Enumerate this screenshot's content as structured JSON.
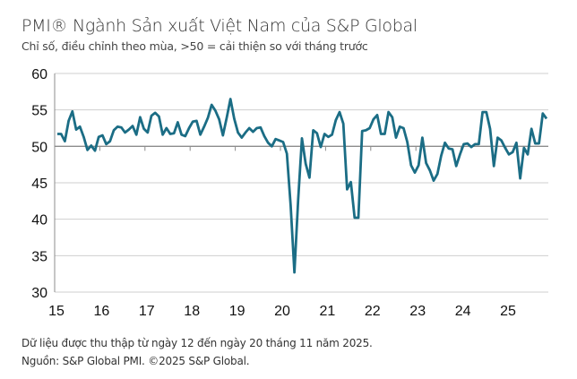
{
  "chart_data": {
    "type": "line",
    "title": "PMI® Ngành Sản xuất Việt Nam của S&P Global",
    "subtitle": "Chỉ số, điều chỉnh theo mùa, >50 = cải thiện so với tháng trước",
    "xlabel": "",
    "ylabel": "",
    "ylim": [
      30,
      60
    ],
    "yticks": [
      "30",
      "35",
      "40",
      "45",
      "50",
      "55",
      "60"
    ],
    "xticks": [
      "15",
      "16",
      "17",
      "18",
      "19",
      "20",
      "21",
      "22",
      "23",
      "24",
      "25"
    ],
    "x_start": "2015-01",
    "x_end": "2025-11",
    "x_frequency": "monthly",
    "grid": true,
    "reference_line": 50,
    "line_color": "#1b6d85",
    "values": [
      51.7,
      51.7,
      50.7,
      53.5,
      54.8,
      52.3,
      52.7,
      51.3,
      49.5,
      50.1,
      49.4,
      51.3,
      51.5,
      50.3,
      50.7,
      52.2,
      52.7,
      52.6,
      51.9,
      52.3,
      52.8,
      51.6,
      54.0,
      52.4,
      51.9,
      54.2,
      54.6,
      54.1,
      51.6,
      52.5,
      51.7,
      51.8,
      53.3,
      51.6,
      51.4,
      52.5,
      53.4,
      53.5,
      51.6,
      52.7,
      53.9,
      55.7,
      54.9,
      53.7,
      51.5,
      53.9,
      56.5,
      53.8,
      51.9,
      51.2,
      51.9,
      52.5,
      52.0,
      52.5,
      52.6,
      51.4,
      50.5,
      50.0,
      51.0,
      50.8,
      50.6,
      49.0,
      41.9,
      32.7,
      42.7,
      51.1,
      47.6,
      45.7,
      52.2,
      51.8,
      49.9,
      51.7,
      51.3,
      51.6,
      53.6,
      54.7,
      53.1,
      44.1,
      45.1,
      40.2,
      40.2,
      52.1,
      52.2,
      52.5,
      53.7,
      54.3,
      51.7,
      51.7,
      54.7,
      54.0,
      51.2,
      52.7,
      52.5,
      50.6,
      47.4,
      46.4,
      47.4,
      51.2,
      47.7,
      46.7,
      45.3,
      46.2,
      48.7,
      50.5,
      49.7,
      49.6,
      47.3,
      48.9,
      50.3,
      50.4,
      49.9,
      50.3,
      50.3,
      54.7,
      54.7,
      52.4,
      47.3,
      51.2,
      50.8,
      49.8,
      48.9,
      49.2,
      50.5,
      45.6,
      49.8,
      48.9,
      52.4,
      50.4,
      50.4,
      54.5,
      53.8
    ]
  },
  "footer": {
    "note": "Dữ liệu được thu thập từ ngày 12 đến ngày 20 tháng 11 năm 2025.",
    "source": "Nguồn: S&P Global PMI. ©2025 S&P Global."
  }
}
